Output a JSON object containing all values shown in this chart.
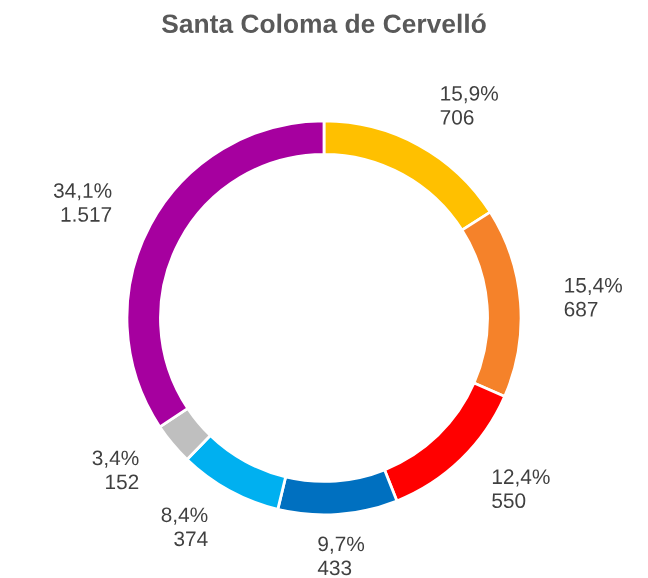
{
  "chart_data": {
    "type": "donut",
    "title": "Santa Coloma de Cervelló",
    "categories": [
      null,
      null,
      null,
      null,
      null,
      null,
      null
    ],
    "values": [
      706,
      687,
      550,
      433,
      374,
      152,
      1517
    ],
    "colors": [
      "#ffc000",
      "#f5822a",
      "#ff0000",
      "#0070c0",
      "#00b0f0",
      "#bfbfbf",
      "#a6009f"
    ],
    "value_labels": [
      "15,9%\n706",
      "15,4%\n687",
      "12,4%\n550",
      "9,7%\n433",
      "8,4%\n374",
      "3,4%\n152",
      "34,1%\n1.517"
    ],
    "legend": false
  }
}
